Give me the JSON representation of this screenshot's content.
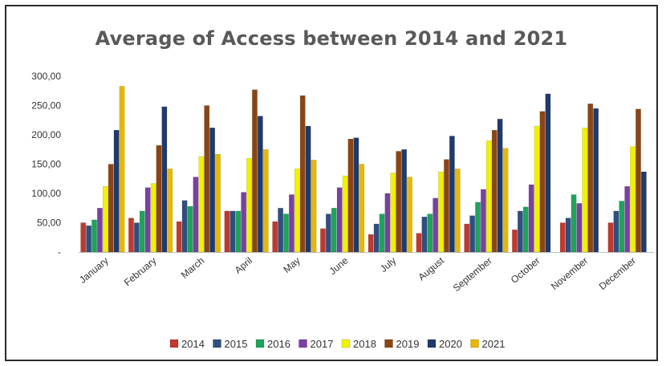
{
  "chart_data": {
    "type": "bar",
    "title": "Average of Access between 2014 and 2021",
    "xlabel": "",
    "ylabel": "",
    "ylim": [
      0,
      300
    ],
    "yticks": [
      {
        "value": 0,
        "label": "-"
      },
      {
        "value": 50,
        "label": "50,00"
      },
      {
        "value": 100,
        "label": "100,00"
      },
      {
        "value": 150,
        "label": "150,00"
      },
      {
        "value": 200,
        "label": "200,00"
      },
      {
        "value": 250,
        "label": "250,00"
      },
      {
        "value": 300,
        "label": "300,00"
      }
    ],
    "grid": false,
    "legend_position": "bottom",
    "categories": [
      "January",
      "February",
      "March",
      "April",
      "May",
      "June",
      "July",
      "August",
      "September",
      "October",
      "November",
      "December"
    ],
    "series": [
      {
        "name": "2014",
        "color": "#c0392b",
        "values": [
          50,
          58,
          52,
          70,
          52,
          40,
          30,
          32,
          48,
          38,
          50,
          50
        ]
      },
      {
        "name": "2015",
        "color": "#2f4f80",
        "values": [
          45,
          50,
          88,
          70,
          75,
          65,
          48,
          60,
          62,
          70,
          58,
          70
        ]
      },
      {
        "name": "2016",
        "color": "#1fa35a",
        "values": [
          55,
          70,
          78,
          70,
          65,
          75,
          65,
          65,
          85,
          77,
          98,
          87
        ]
      },
      {
        "name": "2017",
        "color": "#7b3fa6",
        "values": [
          75,
          110,
          128,
          102,
          98,
          110,
          100,
          92,
          107,
          115,
          83,
          112
        ]
      },
      {
        "name": "2018",
        "color": "#f2f200",
        "values": [
          112,
          117,
          163,
          160,
          142,
          130,
          135,
          137,
          190,
          215,
          212,
          180
        ]
      },
      {
        "name": "2019",
        "color": "#8b4513",
        "values": [
          150,
          182,
          250,
          277,
          267,
          193,
          172,
          158,
          208,
          240,
          253,
          244
        ]
      },
      {
        "name": "2020",
        "color": "#1f3a6b",
        "values": [
          208,
          248,
          212,
          232,
          215,
          195,
          175,
          198,
          227,
          270,
          245,
          137
        ]
      },
      {
        "name": "2021",
        "color": "#e8b800",
        "values": [
          283,
          142,
          167,
          175,
          157,
          150,
          128,
          142,
          177,
          null,
          null,
          null
        ]
      }
    ]
  }
}
